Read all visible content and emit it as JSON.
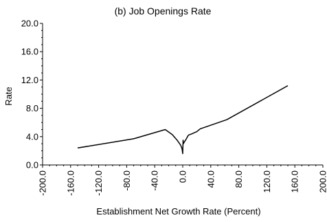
{
  "chart_data": {
    "type": "line",
    "title": "(b) Job Openings Rate",
    "xlabel": "Establishment Net Growth Rate (Percent)",
    "ylabel": "Rate",
    "xlim": [
      -200,
      200
    ],
    "ylim": [
      0,
      20
    ],
    "x_ticks": [
      -200,
      -160,
      -120,
      -80,
      -40,
      0,
      40,
      80,
      120,
      160,
      200
    ],
    "x_tick_labels": [
      "-200.0",
      "-160.0",
      "-120.0",
      "-80.0",
      "-40.0",
      "0.0",
      "40.0",
      "80.0",
      "120.0",
      "160.0",
      "200.0"
    ],
    "y_ticks": [
      0,
      4,
      8,
      12,
      16,
      20
    ],
    "y_tick_labels": [
      "0.0",
      "4.0",
      "8.0",
      "12.0",
      "16.0",
      "20.0"
    ],
    "grid": false,
    "series": [
      {
        "x": [
          -150,
          -70,
          -25,
          -15,
          -8,
          -3,
          -1,
          0,
          0.5,
          1,
          2,
          4,
          8,
          13,
          20,
          25,
          63,
          150
        ],
        "y": [
          2.4,
          3.7,
          5.0,
          4.3,
          3.5,
          2.8,
          2.3,
          1.6,
          3.5,
          3.0,
          3.2,
          3.5,
          4.2,
          4.4,
          4.7,
          5.1,
          6.4,
          11.2
        ]
      }
    ]
  }
}
